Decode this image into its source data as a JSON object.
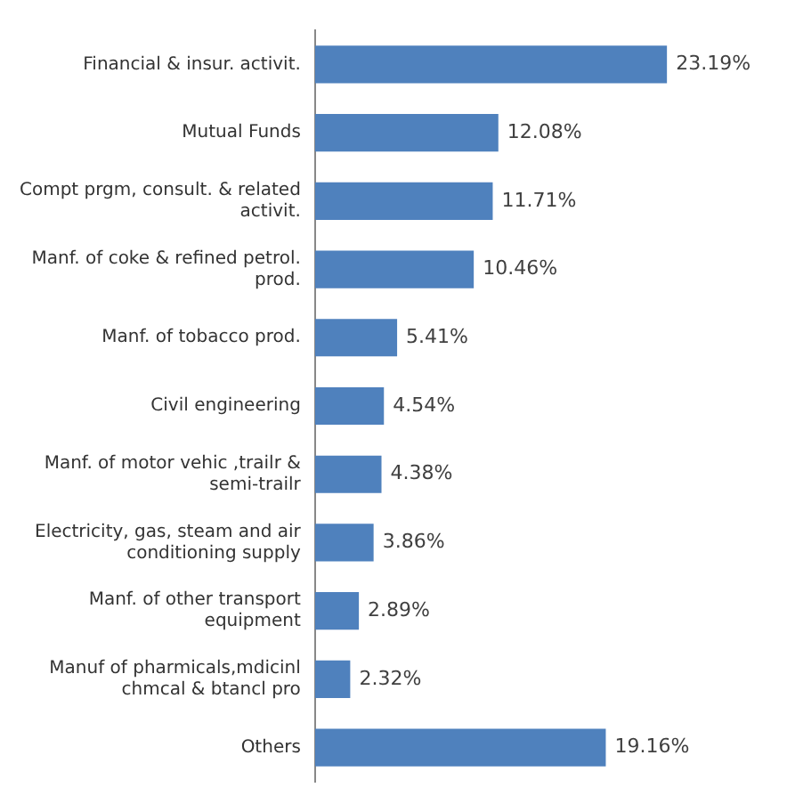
{
  "chart_data": {
    "type": "bar",
    "orientation": "horizontal",
    "categories": [
      "Financial & insur. activit.",
      "Mutual Funds",
      "Compt prgm, consult. & related activit.",
      "Manf. of coke & refined petrol. prod.",
      "Manf. of tobacco prod.",
      "Civil engineering",
      "Manf. of motor vehic ,trailr & semi-trailr",
      "Electricity, gas, steam and air conditioning supply",
      "Manf. of other transport equipment",
      "Manuf of pharmicals,mdicinl chmcal & btancl pro",
      "Others"
    ],
    "values": [
      23.19,
      12.08,
      11.71,
      10.46,
      5.41,
      4.54,
      4.38,
      3.86,
      2.89,
      2.32,
      19.16
    ],
    "value_labels": [
      "23.19%",
      "12.08%",
      "11.71%",
      "10.46%",
      "5.41%",
      "4.54%",
      "4.38%",
      "3.86%",
      "2.89%",
      "2.32%",
      "19.16%"
    ],
    "color": "#4f81bd",
    "legend": false
  }
}
